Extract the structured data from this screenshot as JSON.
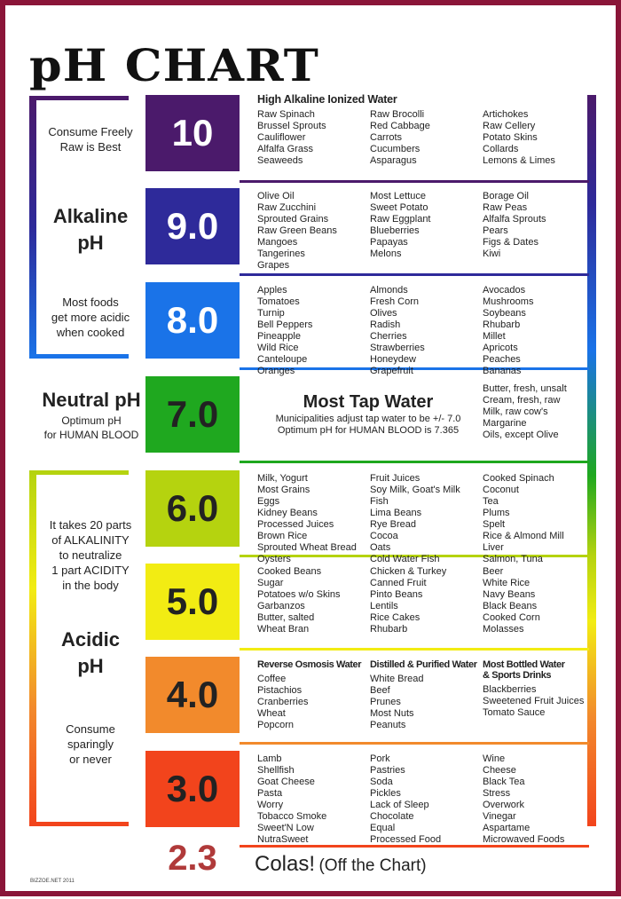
{
  "title": "pH CHART",
  "colors": {
    "frame": "#8a1538",
    "ph10": "#4b1a6b",
    "ph9": "#2e2a9a",
    "ph8": "#1a73e8",
    "ph7": "#1fa81f",
    "ph6": "#b5d30f",
    "ph5": "#f2ec13",
    "ph4": "#f28a2c",
    "ph3": "#f2441c",
    "ph23": "#b03a3a"
  },
  "side": {
    "consume_freely": "Consume Freely",
    "raw_best": "Raw is Best",
    "alkaline": "Alkaline",
    "alkaline_ph": "pH",
    "most_foods": "Most foods",
    "more_acidic": "get more acidic",
    "when_cooked": "when cooked",
    "neutral": "Neutral pH",
    "optimum": "Optimum pH",
    "for_blood": "for HUMAN BLOOD",
    "takes1": "It takes 20 parts",
    "takes2": "of ALKALINITY",
    "takes3": "to neutralize",
    "takes4": "1 part ACIDITY",
    "takes5": "in the body",
    "acidic": "Acidic",
    "acidic_ph": "pH",
    "consume1": "Consume",
    "consume2": "sparingly",
    "consume3": "or never",
    "credit": "BIZZOE.NET  2011"
  },
  "levels": [
    {
      "ph": "10",
      "heading": "High Alkaline Ionized Water",
      "cols": [
        [
          "Raw Spinach",
          "Brussel Sprouts",
          "Cauliflower",
          "Alfalfa Grass",
          "Seaweeds"
        ],
        [
          "Raw Brocolli",
          "Red Cabbage",
          "Carrots",
          "Cucumbers",
          "Asparagus"
        ],
        [
          "Artichokes",
          "Raw Cellery",
          "Potato Skins",
          "Collards",
          "Lemons & Limes"
        ]
      ]
    },
    {
      "ph": "9.0",
      "cols": [
        [
          "Olive Oil",
          "Raw Zucchini",
          "Sprouted Grains",
          "Raw Green Beans",
          "Mangoes",
          "Tangerines",
          "Grapes"
        ],
        [
          "Most Lettuce",
          "Sweet Potato",
          "Raw Eggplant",
          "Blueberries",
          "Papayas",
          "Melons"
        ],
        [
          "Borage Oil",
          "Raw Peas",
          "Alfalfa Sprouts",
          "Pears",
          "Figs & Dates",
          "Kiwi"
        ]
      ]
    },
    {
      "ph": "8.0",
      "cols": [
        [
          "Apples",
          "Tomatoes",
          "Turnip",
          "Bell Peppers",
          "Pineapple",
          "Wild Rice",
          "Canteloupe",
          "Oranges"
        ],
        [
          "Almonds",
          "Fresh Corn",
          "Olives",
          "Radish",
          "Cherries",
          "Strawberries",
          "Honeydew",
          "Grapefruit"
        ],
        [
          "Avocados",
          "Mushrooms",
          "Soybeans",
          "Rhubarb",
          "Millet",
          "Apricots",
          "Peaches",
          "Bananas"
        ]
      ]
    },
    {
      "ph": "7.0",
      "tap_title": "Most Tap Water",
      "tap_line1": "Municipalities adjust tap water to be +/- 7.0",
      "tap_line2": "Optimum pH for HUMAN BLOOD is 7.365",
      "cols": [
        [
          "Butter, fresh, unsalt",
          "Cream, fresh, raw",
          "Milk, raw cow's",
          "Margarine",
          "Oils, except Olive"
        ]
      ]
    },
    {
      "ph": "6.0",
      "cols": [
        [
          "Milk, Yogurt",
          "Most Grains",
          "Eggs",
          "Kidney Beans",
          "Processed Juices",
          "Brown Rice",
          "Sprouted Wheat Bread",
          "Oysters"
        ],
        [
          "Fruit Juices",
          "Soy Milk, Goat's Milk",
          "Fish",
          "Lima Beans",
          "Rye Bread",
          "Cocoa",
          "Oats",
          "Cold Water Fish"
        ],
        [
          "Cooked Spinach",
          "Coconut",
          "Tea",
          "Plums",
          "Spelt",
          "Rice & Almond Mill",
          "Liver",
          "Salmon, Tuna"
        ]
      ]
    },
    {
      "ph": "5.0",
      "cols": [
        [
          "Cooked Beans",
          "Sugar",
          "Potatoes w/o Skins",
          "Garbanzos",
          "Butter, salted",
          "Wheat Bran"
        ],
        [
          "Chicken & Turkey",
          "Canned Fruit",
          "Pinto Beans",
          "Lentils",
          "Rice Cakes",
          "Rhubarb"
        ],
        [
          "Beer",
          "White Rice",
          "Navy Beans",
          "Black Beans",
          "Cooked Corn",
          "Molasses"
        ]
      ]
    },
    {
      "ph": "4.0",
      "col_heads": [
        "Reverse Osmosis Water",
        "Distilled & Purified Water",
        "Most Bottled Water & Sports Drinks"
      ],
      "cols": [
        [
          "Coffee",
          "Pistachios",
          "Cranberries",
          "Wheat",
          "Popcorn"
        ],
        [
          "White Bread",
          "Beef",
          "Prunes",
          "Most Nuts",
          "Peanuts"
        ],
        [
          "Blackberries",
          "Sweetened Fruit Juices",
          "Tomato Sauce"
        ]
      ]
    },
    {
      "ph": "3.0",
      "cols": [
        [
          "Lamb",
          "Shellfish",
          "Goat Cheese",
          "Pasta",
          "Worry",
          "Tobacco Smoke",
          "Sweet'N Low",
          "NutraSweet"
        ],
        [
          "Pork",
          "Pastries",
          "Soda",
          "Pickles",
          "Lack of Sleep",
          "Chocolate",
          "Equal",
          "Processed Food"
        ],
        [
          "Wine",
          "Cheese",
          "Black Tea",
          "Stress",
          "Overwork",
          "Vinegar",
          "Aspartame",
          "Microwaved Foods"
        ]
      ]
    }
  ],
  "off_chart": {
    "ph": "2.3",
    "label": "Colas!",
    "note": "(Off the Chart)"
  }
}
